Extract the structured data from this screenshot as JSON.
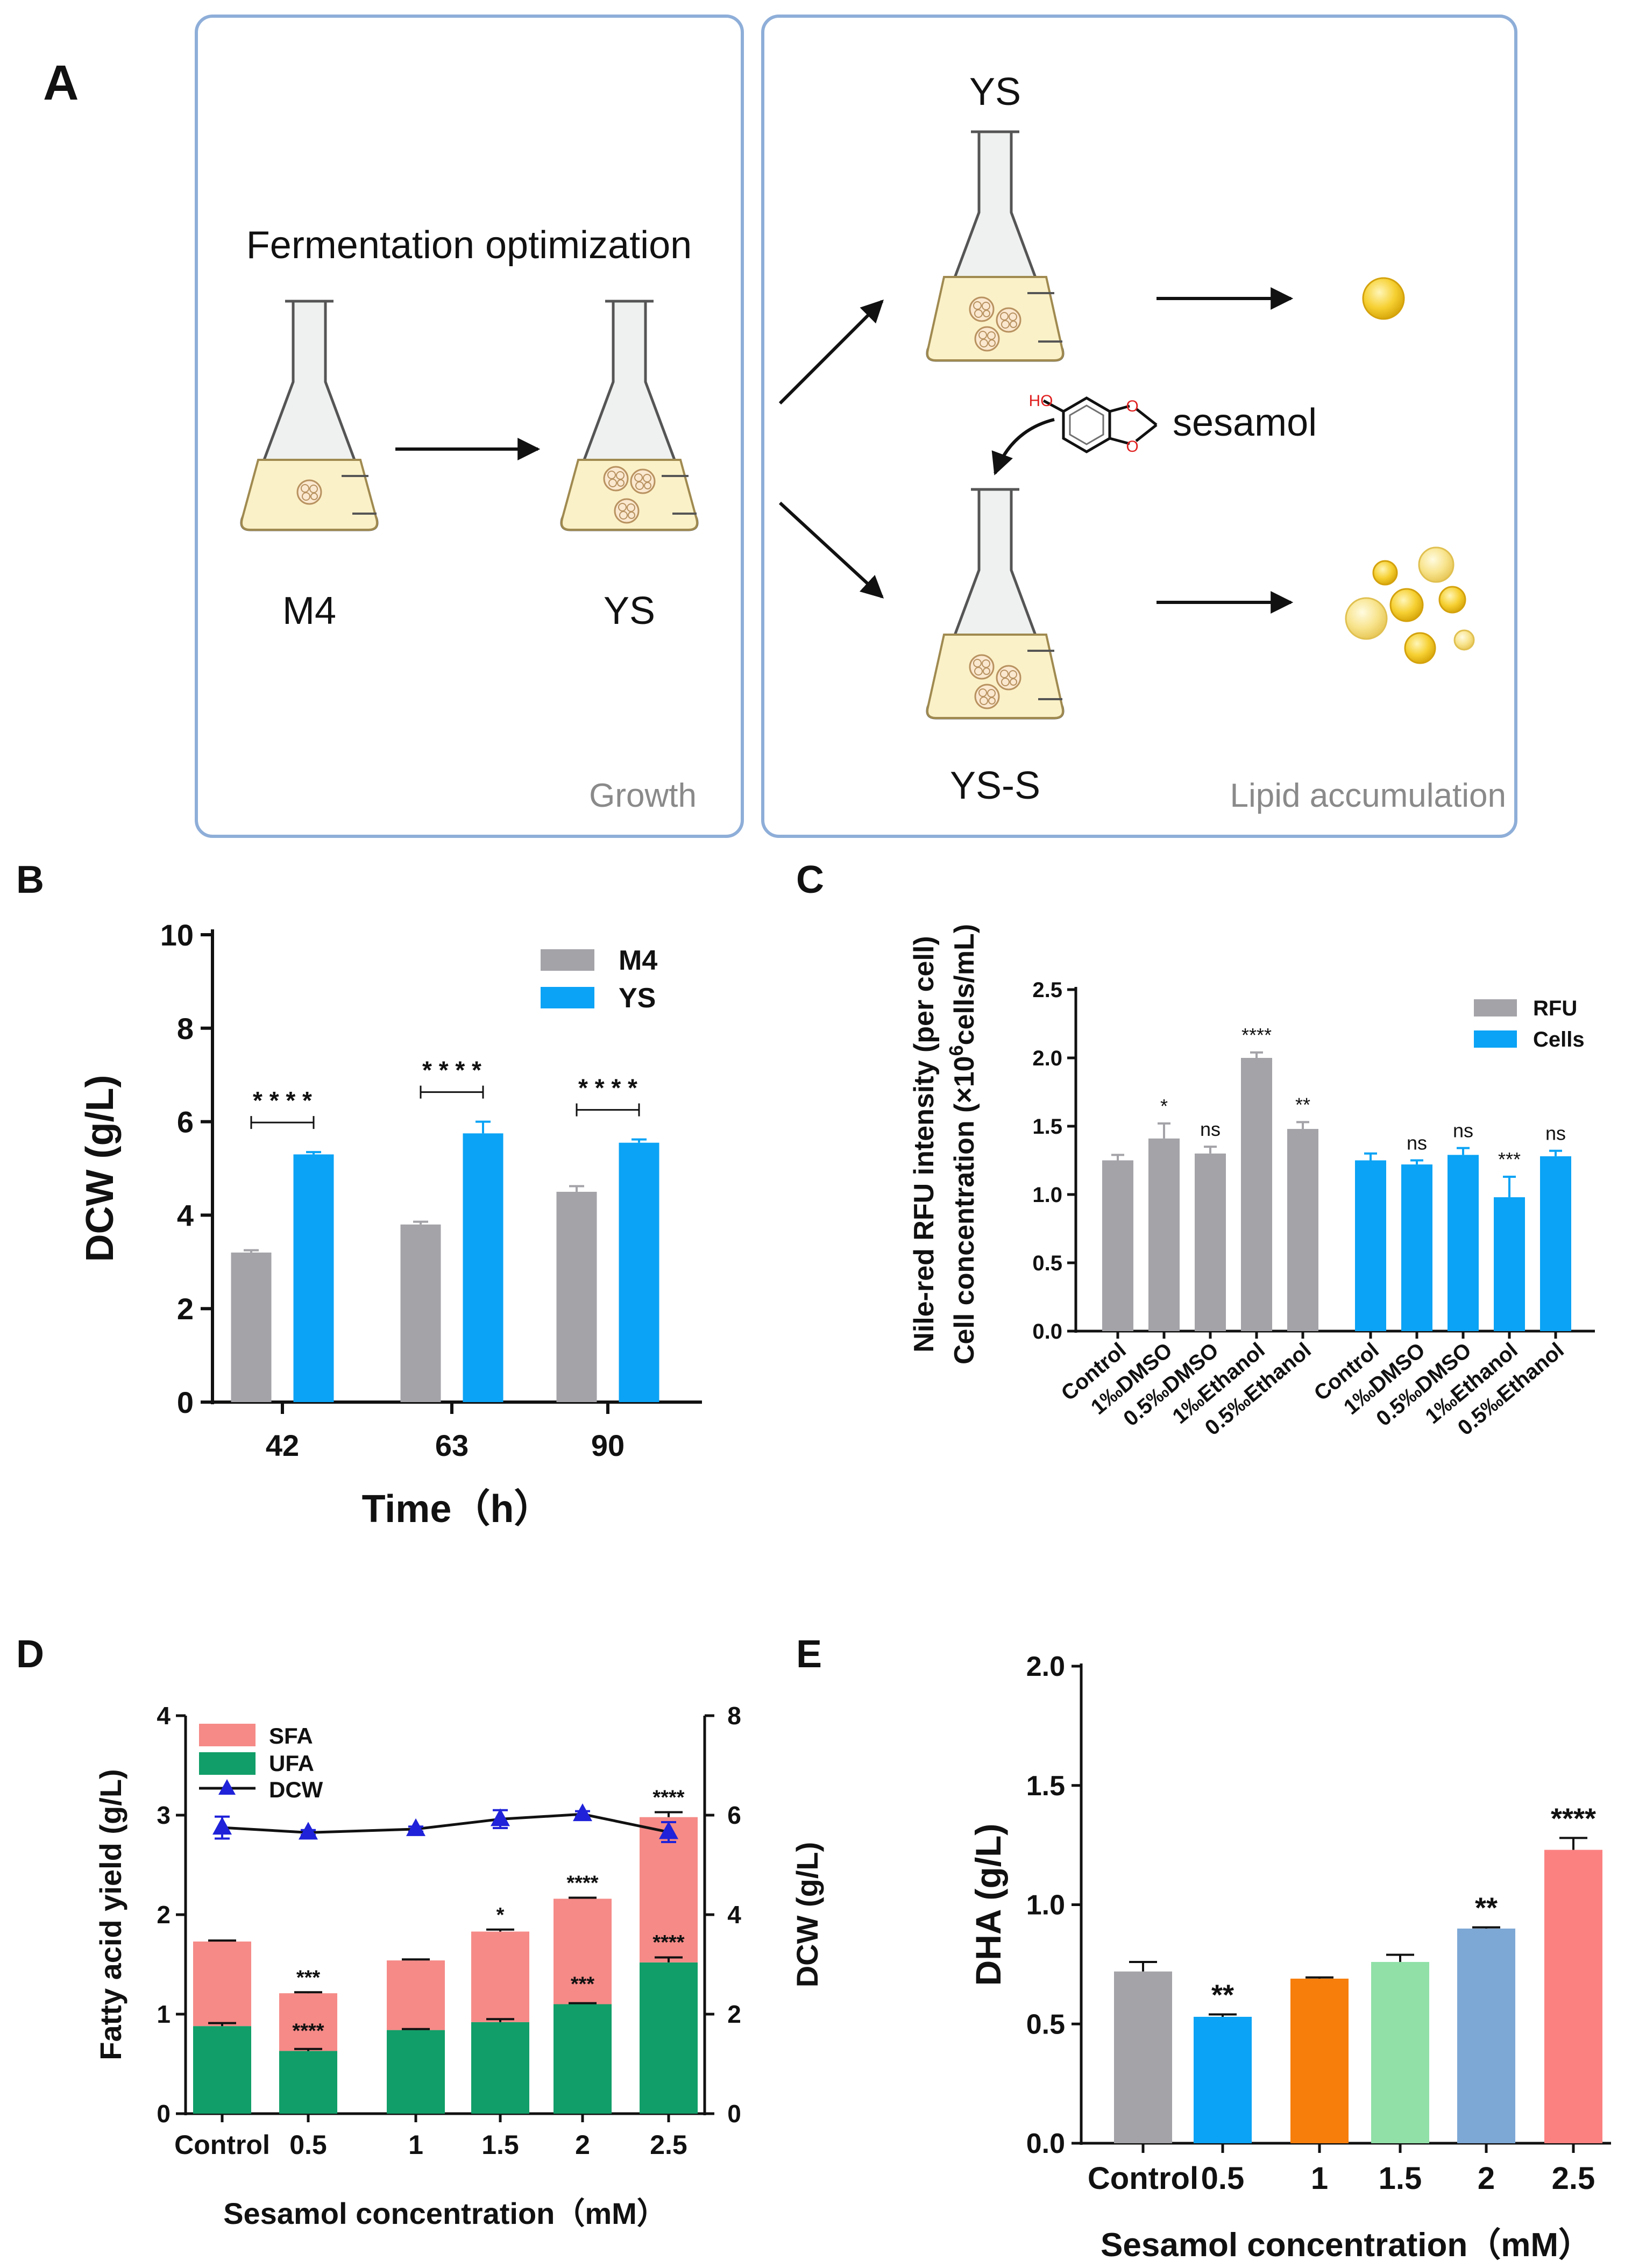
{
  "panel_letters": [
    "A",
    "B",
    "C",
    "D",
    "E"
  ],
  "panelA": {
    "growth_title": "Fermentation optimization",
    "m4_label": "M4",
    "ys_label": "YS",
    "growth_caption": "Growth",
    "ys_top_label": "YS",
    "sesamol_label": "sesamol",
    "oh_label": "HO",
    "o1_label": "O",
    "o2_label": "O",
    "yss_label": "YS-S",
    "lipid_caption": "Lipid accumulation"
  },
  "chart_data": [
    {
      "id": "B",
      "type": "bar",
      "xlabel": "Time（h）",
      "ylabel": "DCW (g/L)",
      "categories": [
        "42",
        "63",
        "90"
      ],
      "ylim": [
        0,
        10
      ],
      "yticks": [
        "0",
        "2",
        "4",
        "6",
        "8",
        "10"
      ],
      "series": [
        {
          "name": "M4",
          "color": "#a3a3a8",
          "values": [
            3.2,
            3.8,
            4.5
          ],
          "errors": [
            0.05,
            0.06,
            0.12
          ]
        },
        {
          "name": "YS",
          "color": "#0ba3f5",
          "values": [
            5.3,
            5.75,
            5.55
          ],
          "errors": [
            0.05,
            0.25,
            0.07
          ]
        }
      ],
      "significance": [
        "****",
        "****",
        "****"
      ]
    },
    {
      "id": "C",
      "type": "bar",
      "ylabel_line1": "Nile-red RFU intensity (per cell)",
      "ylabel_line2_prefix": "Cell concentration (×10",
      "ylabel_line2_sup": "6",
      "ylabel_line2_suffix": "cells/mL)",
      "ylim": [
        0,
        2.5
      ],
      "yticks": [
        "0.0",
        "0.5",
        "1.0",
        "1.5",
        "2.0",
        "2.5"
      ],
      "categories": [
        "Control",
        "1‰DMSO",
        "0.5‰DMSO",
        "1‰Ethanol",
        "0.5‰Ethanol"
      ],
      "series": [
        {
          "name": "RFU",
          "color": "#a3a3a8",
          "values": [
            1.25,
            1.41,
            1.3,
            2.0,
            1.48
          ],
          "errors": [
            0.04,
            0.11,
            0.05,
            0.04,
            0.05
          ],
          "significance": [
            "",
            "*",
            "ns",
            "****",
            "**"
          ]
        },
        {
          "name": "Cells",
          "color": "#0ba3f5",
          "values": [
            1.25,
            1.22,
            1.29,
            0.98,
            1.28
          ],
          "errors": [
            0.05,
            0.03,
            0.05,
            0.15,
            0.04
          ],
          "significance": [
            "",
            "ns",
            "ns",
            "***",
            "ns"
          ]
        }
      ]
    },
    {
      "id": "D",
      "type": "bar",
      "xlabel": "Sesamol concentration（mM）",
      "ylabel_left": "Fatty acid yield (g/L)",
      "ylabel_right": "DCW (g/L)",
      "categories": [
        "Control",
        "0.5",
        "1",
        "1.5",
        "2",
        "2.5"
      ],
      "ylim_left": [
        0,
        4
      ],
      "yticks_left": [
        "0",
        "1",
        "2",
        "3",
        "4"
      ],
      "ylim_right": [
        0,
        8
      ],
      "yticks_right": [
        "0",
        "2",
        "4",
        "6",
        "8"
      ],
      "series": [
        {
          "name": "UFA",
          "color": "#119e68",
          "values": [
            0.88,
            0.63,
            0.84,
            0.92,
            1.1,
            1.52
          ],
          "errors": [
            0.03,
            0.02,
            0.01,
            0.03,
            0.01,
            0.05
          ],
          "significance": [
            "",
            "****",
            "",
            "",
            "***",
            "****"
          ]
        },
        {
          "name": "SFA",
          "color": "#f58a87",
          "values": [
            0.85,
            0.58,
            0.7,
            0.91,
            1.06,
            1.46
          ],
          "errors": [
            0.01,
            0.01,
            0.01,
            0.02,
            0.01,
            0.05
          ],
          "significance": [
            "",
            "***",
            "",
            "*",
            "****",
            "****"
          ]
        },
        {
          "name": "DCW",
          "type": "line",
          "axis": "right",
          "color": "#1f22d8",
          "values": [
            5.75,
            5.65,
            5.72,
            5.92,
            6.02,
            5.66
          ],
          "errors": [
            0.22,
            0.05,
            0.05,
            0.18,
            0.06,
            0.2
          ]
        }
      ]
    },
    {
      "id": "E",
      "type": "bar",
      "xlabel": "Sesamol concentration（mM）",
      "ylabel": "DHA (g/L)",
      "categories": [
        "Control",
        "0.5",
        "1",
        "1.5",
        "2",
        "2.5"
      ],
      "ylim": [
        0,
        2
      ],
      "yticks": [
        "0.0",
        "0.5",
        "1.0",
        "1.5",
        "2.0"
      ],
      "colors": [
        "#a3a3a8",
        "#0ba3f5",
        "#f77e0b",
        "#90e0a8",
        "#7da8d5",
        "#fb8180"
      ],
      "values": [
        0.72,
        0.53,
        0.69,
        0.76,
        0.9,
        1.23
      ],
      "errors": [
        0.04,
        0.01,
        0.005,
        0.03,
        0.005,
        0.05
      ],
      "significance": [
        "",
        "**",
        "",
        "",
        "**",
        "****"
      ]
    }
  ]
}
